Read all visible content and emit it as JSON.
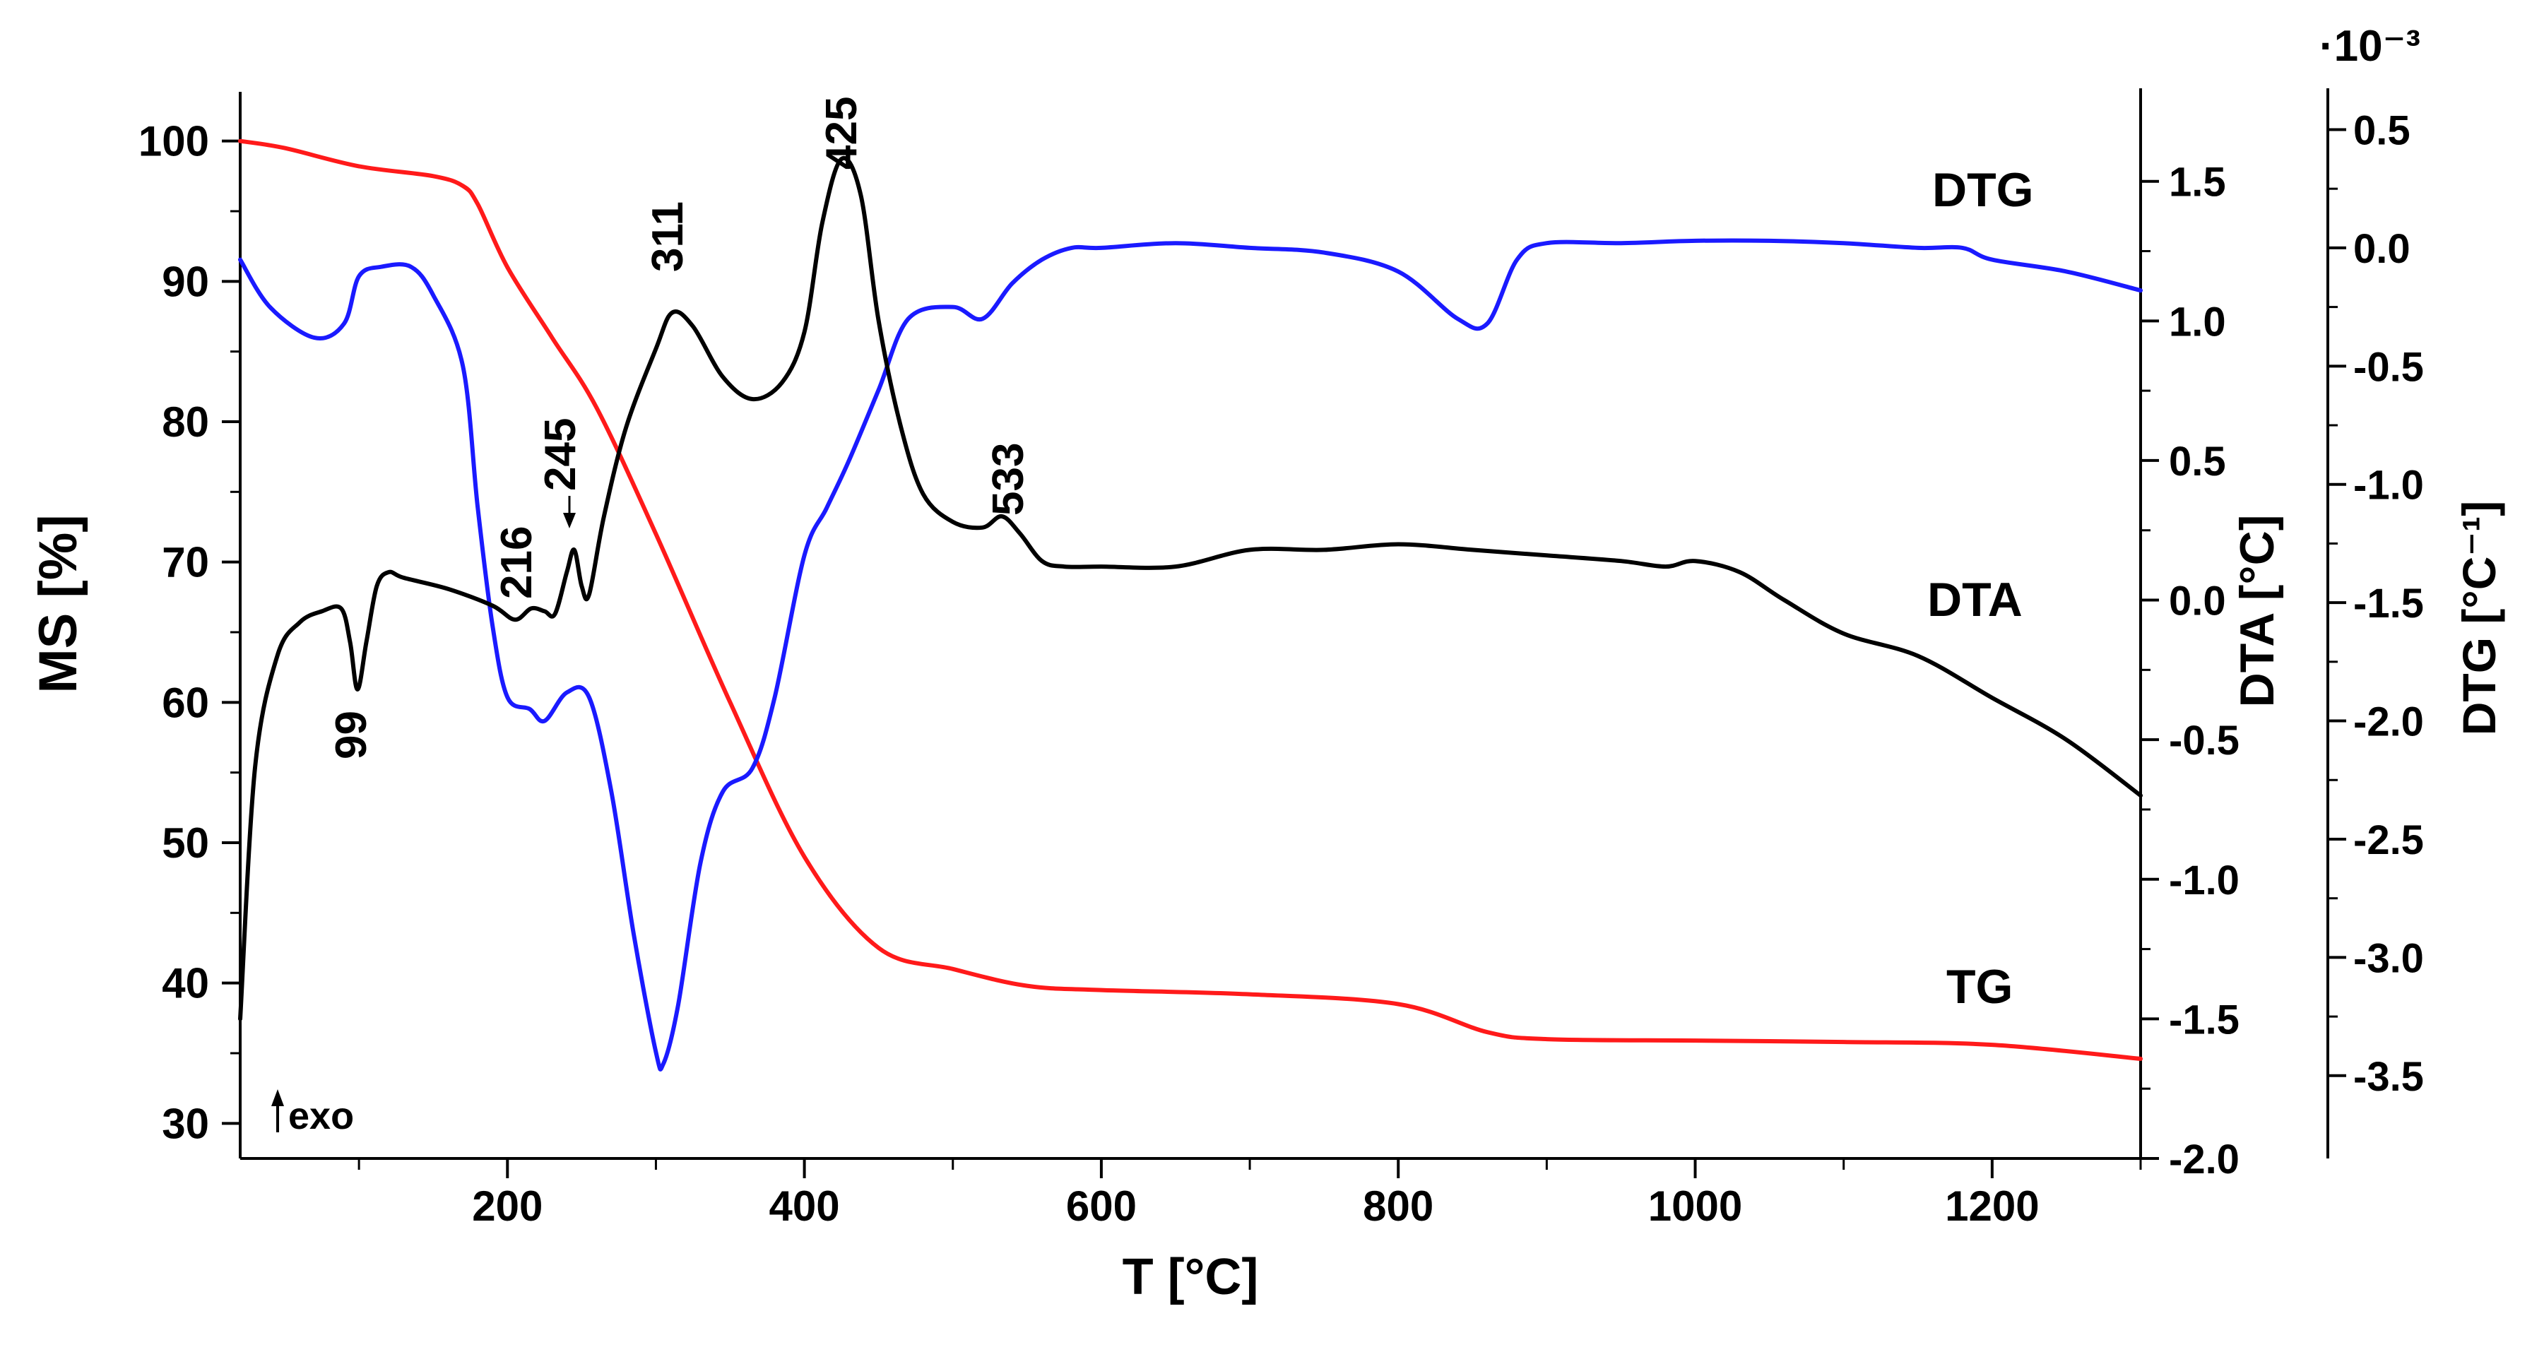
{
  "chart_data": {
    "type": "line",
    "x_axis": {
      "label": "T [°C]",
      "range": [
        20,
        1300
      ],
      "ticks": [
        200,
        400,
        600,
        800,
        1000,
        1200
      ]
    },
    "y_axes": [
      {
        "id": "ms",
        "label": "MS [%]",
        "position": "left",
        "range": [
          27.5,
          102.5
        ],
        "ticks": [
          30,
          40,
          50,
          60,
          70,
          80,
          90,
          100
        ],
        "tick_labels": [
          "30",
          "40",
          "50",
          "60",
          "70",
          "80",
          "90",
          "100"
        ]
      },
      {
        "id": "dta",
        "label": "DTA [°C]",
        "position": "right",
        "range": [
          -2.0,
          1.77
        ],
        "ticks": [
          -2.0,
          -1.5,
          -1.0,
          -0.5,
          0.0,
          0.5,
          1.0,
          1.5
        ],
        "tick_labels": [
          "-2.0",
          "-1.5",
          "-1.0",
          "-0.5",
          "0.0",
          "0.5",
          "1.0",
          "1.5"
        ]
      },
      {
        "id": "dtg",
        "label": "DTG [°C⁻¹]",
        "position": "far-right",
        "multiplier_label": "·10⁻³",
        "range": [
          -3.85,
          0.6
        ],
        "ticks": [
          -3.5,
          -3.0,
          -2.5,
          -2.0,
          -1.5,
          -1.0,
          -0.5,
          0.0,
          0.5
        ],
        "tick_labels": [
          "-3.5",
          "-3.0",
          "-2.5",
          "-2.0",
          "-1.5",
          "-1.0",
          "-0.5",
          "0.0",
          "0.5"
        ]
      }
    ],
    "series": [
      {
        "name": "TG",
        "axis": "ms",
        "color": "#ff1a1a",
        "x": [
          20,
          50,
          100,
          150,
          170,
          180,
          200,
          230,
          260,
          300,
          350,
          400,
          450,
          500,
          550,
          600,
          700,
          800,
          860,
          900,
          1000,
          1100,
          1200,
          1300
        ],
        "y": [
          100,
          99.5,
          98.2,
          97.5,
          96.8,
          95.5,
          91,
          86,
          81,
          72,
          60,
          49,
          42.5,
          41,
          39.8,
          39.5,
          39.2,
          38.5,
          36.5,
          36,
          35.9,
          35.8,
          35.6,
          34.6
        ]
      },
      {
        "name": "DTA",
        "axis": "dta",
        "color": "#000000",
        "x": [
          20,
          30,
          45,
          60,
          75,
          88,
          94,
          99,
          105,
          112,
          120,
          130,
          160,
          190,
          205,
          216,
          225,
          232,
          240,
          245,
          250,
          255,
          265,
          280,
          300,
          311,
          325,
          345,
          365,
          385,
          400,
          412,
          425,
          438,
          450,
          465,
          480,
          500,
          520,
          533,
          545,
          560,
          575,
          600,
          650,
          700,
          750,
          800,
          850,
          900,
          950,
          980,
          1000,
          1030,
          1060,
          1100,
          1150,
          1200,
          1250,
          1300
        ],
        "y": [
          -1.5,
          -0.6,
          -0.2,
          -0.08,
          -0.04,
          -0.03,
          -0.15,
          -0.32,
          -0.15,
          0.05,
          0.1,
          0.08,
          0.04,
          -0.02,
          -0.07,
          -0.03,
          -0.04,
          -0.05,
          0.1,
          0.18,
          0.05,
          0.02,
          0.3,
          0.62,
          0.9,
          1.03,
          0.98,
          0.8,
          0.72,
          0.78,
          0.96,
          1.35,
          1.58,
          1.45,
          1.0,
          0.62,
          0.38,
          0.28,
          0.26,
          0.3,
          0.24,
          0.14,
          0.12,
          0.12,
          0.12,
          0.18,
          0.18,
          0.2,
          0.18,
          0.16,
          0.14,
          0.12,
          0.14,
          0.1,
          0.0,
          -0.12,
          -0.2,
          -0.35,
          -0.5,
          -0.7
        ]
      },
      {
        "name": "DTG",
        "axis": "dtg",
        "color": "#1a1aff",
        "x": [
          20,
          40,
          70,
          90,
          100,
          115,
          135,
          150,
          170,
          180,
          190,
          200,
          215,
          225,
          240,
          255,
          270,
          285,
          300,
          305,
          315,
          330,
          345,
          365,
          380,
          400,
          415,
          430,
          450,
          470,
          500,
          520,
          540,
          560,
          580,
          600,
          650,
          700,
          750,
          800,
          840,
          860,
          880,
          900,
          950,
          1000,
          1050,
          1100,
          1150,
          1180,
          1200,
          1250,
          1300
        ],
        "y": [
          -0.05,
          -0.25,
          -0.38,
          -0.32,
          -0.12,
          -0.08,
          -0.08,
          -0.2,
          -0.5,
          -1.1,
          -1.6,
          -1.9,
          -1.95,
          -2.0,
          -1.88,
          -1.9,
          -2.3,
          -2.9,
          -3.4,
          -3.45,
          -3.2,
          -2.6,
          -2.3,
          -2.2,
          -1.9,
          -1.3,
          -1.1,
          -0.9,
          -0.6,
          -0.3,
          -0.25,
          -0.3,
          -0.15,
          -0.05,
          0.0,
          0.0,
          0.02,
          0.0,
          -0.02,
          -0.1,
          -0.3,
          -0.32,
          -0.05,
          0.02,
          0.02,
          0.03,
          0.03,
          0.02,
          0.0,
          0.0,
          -0.05,
          -0.1,
          -0.18
        ]
      }
    ],
    "series_labels": [
      {
        "text": "DTG",
        "color": "#1a1a99"
      },
      {
        "text": "DTA",
        "color": "#000000"
      },
      {
        "text": "TG",
        "color": "#ff1a1a"
      }
    ],
    "annotations": [
      "99",
      "216",
      "245",
      "311",
      "425",
      "533"
    ],
    "exo_label": "exo"
  }
}
